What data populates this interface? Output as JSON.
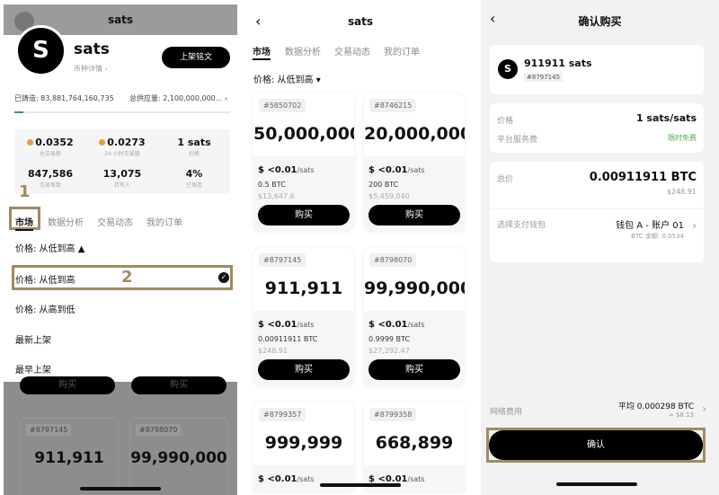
{
  "panel1": {
    "header_title": "sats",
    "avatar_letter": "S",
    "name": "sats",
    "detail_link": "币种详情 ›",
    "list_button": "上架铭文",
    "minted_label": "已铸造: 83,881,764,160,735",
    "supply_label": "总供应量: 2,100,000,000... ›",
    "mint_progress_percent": 4,
    "stats": [
      {
        "value": "0.0352",
        "label": "总交易额",
        "coin": true
      },
      {
        "value": "0.0273",
        "label": "24 小时交易额",
        "coin": true
      },
      {
        "value": "1 sats",
        "label": "价格",
        "coin": false
      },
      {
        "value": "847,586",
        "label": "交易笔数",
        "coin": false
      },
      {
        "value": "13,075",
        "label": "持有人",
        "coin": false
      },
      {
        "value": "4%",
        "label": "已铸造",
        "coin": false
      }
    ],
    "step1": "1",
    "step2": "2",
    "tabs": [
      "市场",
      "数据分析",
      "交易动态",
      "我的订单"
    ],
    "sort_label": "价格: 从低到高 ▲",
    "sort_options": [
      "价格: 从低到高",
      "价格: 从高到低",
      "最新上架",
      "最早上架"
    ],
    "dim_buy": "购买",
    "dim_cards": [
      {
        "id": "#8797145",
        "amount": "911,911"
      },
      {
        "id": "#8798070",
        "amount": "99,990,000"
      }
    ]
  },
  "panel2": {
    "title": "sats",
    "tabs": [
      "市场",
      "数据分析",
      "交易动态",
      "我的订单"
    ],
    "sort_label": "价格: 从低到高 ▾",
    "cards": [
      {
        "id": "#5850702",
        "amount": "50,000,000",
        "price": "$ <0.01",
        "unit": "/sats",
        "btc": "0.5 BTC",
        "usd": "$13,647.6",
        "buy": "购买"
      },
      {
        "id": "#8746215",
        "amount": "20,000,000,...",
        "price": "$ <0.01",
        "unit": "/sats",
        "btc": "200 BTC",
        "usd": "$5,459,040",
        "buy": "购买"
      },
      {
        "id": "#8797145",
        "amount": "911,911",
        "price": "$ <0.01",
        "unit": "/sats",
        "btc": "0.00911911 BTC",
        "usd": "$248.91",
        "buy": "购买"
      },
      {
        "id": "#8798070",
        "amount": "99,990,000",
        "price": "$ <0.01",
        "unit": "/sats",
        "btc": "0.9999 BTC",
        "usd": "$27,292.47",
        "buy": "购买"
      },
      {
        "id": "#8799357",
        "amount": "999,999",
        "price": "$ <0.01",
        "unit": "/sats",
        "btc": "",
        "usd": "",
        "buy": ""
      },
      {
        "id": "#8799358",
        "amount": "668,899",
        "price": "$ <0.01",
        "unit": "/sats",
        "btc": "",
        "usd": "",
        "buy": ""
      }
    ]
  },
  "panel3": {
    "title": "确认购买",
    "avatar_letter": "S",
    "item_name": "911911 sats",
    "item_id": "#8797145",
    "price_label": "价格",
    "price_value": "1 sats/sats",
    "fee_label": "平台服务费",
    "fee_value": "限时免费",
    "total_label": "总价",
    "total_value": "0.00911911 BTC",
    "total_usd": "$248.91",
    "wallet_label": "选择支付钱包",
    "wallet_value": "钱包 A - 账户 01",
    "wallet_balance": "BTC 余额: 0.0534",
    "network_label": "网络费用",
    "network_value": "平均 0.000298 BTC",
    "network_usd": "≈ $8.13",
    "confirm": "确认",
    "fee_color": "#4caf50"
  }
}
